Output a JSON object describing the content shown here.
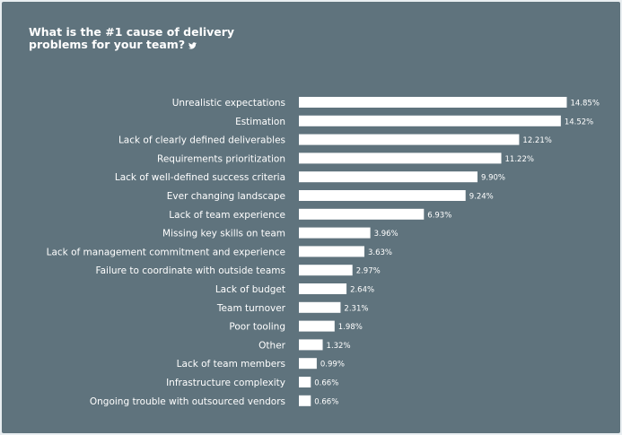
{
  "chart_data": {
    "type": "bar",
    "orientation": "horizontal",
    "title": "What is the #1 cause of delivery problems for your team?",
    "title_icon": "twitter-bird-icon",
    "categories": [
      "Unrealistic expectations",
      "Estimation",
      "Lack of clearly defined deliverables",
      "Requirements prioritization",
      "Lack of well-defined success criteria",
      "Ever changing landscape",
      "Lack of team experience",
      "Missing key skills on team",
      "Lack of management commitment and experience",
      "Failure to coordinate with outside teams",
      "Lack of budget",
      "Team turnover",
      "Poor tooling",
      "Other",
      "Lack of team members",
      "Infrastructure complexity",
      "Ongoing trouble with outsourced vendors"
    ],
    "values": [
      14.85,
      14.52,
      12.21,
      11.22,
      9.9,
      9.24,
      6.93,
      3.96,
      3.63,
      2.97,
      2.64,
      2.31,
      1.98,
      1.32,
      0.99,
      0.66,
      0.66
    ],
    "value_labels": [
      "14.85%",
      "14.52%",
      "12.21%",
      "11.22%",
      "9.90%",
      "9.24%",
      "6.93%",
      "3.96%",
      "3.63%",
      "2.97%",
      "2.64%",
      "2.31%",
      "1.98%",
      "1.32%",
      "0.99%",
      "0.66%",
      "0.66%"
    ],
    "xlabel": "",
    "ylabel": "",
    "grid": false,
    "legend": "none",
    "colors": {
      "background": "#5f737d",
      "bar": "#ffffff",
      "text": "#ffffff"
    }
  }
}
